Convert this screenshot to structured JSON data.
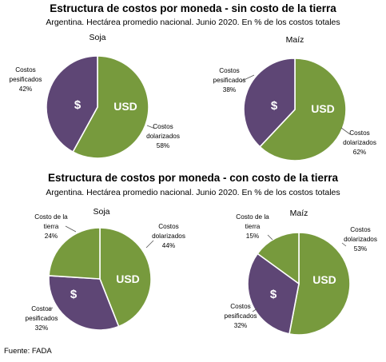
{
  "heading1": {
    "title": "Estructura de costos por moneda - sin costo de la tierra",
    "subtitle": "Argentina. Hectárea promedio nacional. Junio 2020. En % de los costos totales"
  },
  "heading2": {
    "title": "Estructura de costos por moneda - con costo de la tierra",
    "subtitle": "Argentina. Hectárea promedio nacional. Junio 2020. En % de los costos totales"
  },
  "source": "Fuente: FADA",
  "colors": {
    "dolarizados": "#779A3D",
    "pesificados": "#5E4675",
    "tierra": "#779A3D",
    "edge": "#ffffff"
  },
  "chart_data": [
    {
      "type": "pie",
      "title": "Soja",
      "group": "sin costo de la tierra",
      "slices": [
        {
          "label": "Costos dolarizados",
          "value": 58,
          "value_text": "58%",
          "mark": "USD",
          "color": "#779A3D"
        },
        {
          "label": "Costos pesificados",
          "value": 42,
          "value_text": "42%",
          "mark": "$",
          "color": "#5E4675"
        }
      ]
    },
    {
      "type": "pie",
      "title": "Maíz",
      "group": "sin costo de la tierra",
      "slices": [
        {
          "label": "Costos dolarizados",
          "value": 62,
          "value_text": "62%",
          "mark": "USD",
          "color": "#779A3D"
        },
        {
          "label": "Costos pesificados",
          "value": 38,
          "value_text": "38%",
          "mark": "$",
          "color": "#5E4675"
        }
      ]
    },
    {
      "type": "pie",
      "title": "Soja",
      "group": "con costo de la tierra",
      "slices": [
        {
          "label": "Costos dolarizados",
          "value": 44,
          "value_text": "44%",
          "mark": "USD",
          "color": "#779A3D"
        },
        {
          "label": "Costos pesificados",
          "value": 32,
          "value_text": "32%",
          "mark": "$",
          "color": "#5E4675"
        },
        {
          "label": "Costo de la tierra",
          "value": 24,
          "value_text": "24%",
          "mark": "",
          "color": "#779A3D"
        }
      ]
    },
    {
      "type": "pie",
      "title": "Maíz",
      "group": "con costo de la tierra",
      "slices": [
        {
          "label": "Costos dolarizados",
          "value": 53,
          "value_text": "53%",
          "mark": "USD",
          "color": "#779A3D"
        },
        {
          "label": "Costos pesificados",
          "value": 32,
          "value_text": "32%",
          "mark": "$",
          "color": "#5E4675"
        },
        {
          "label": "Costo de la tierra",
          "value": 15,
          "value_text": "15%",
          "mark": "",
          "color": "#779A3D"
        }
      ]
    }
  ]
}
